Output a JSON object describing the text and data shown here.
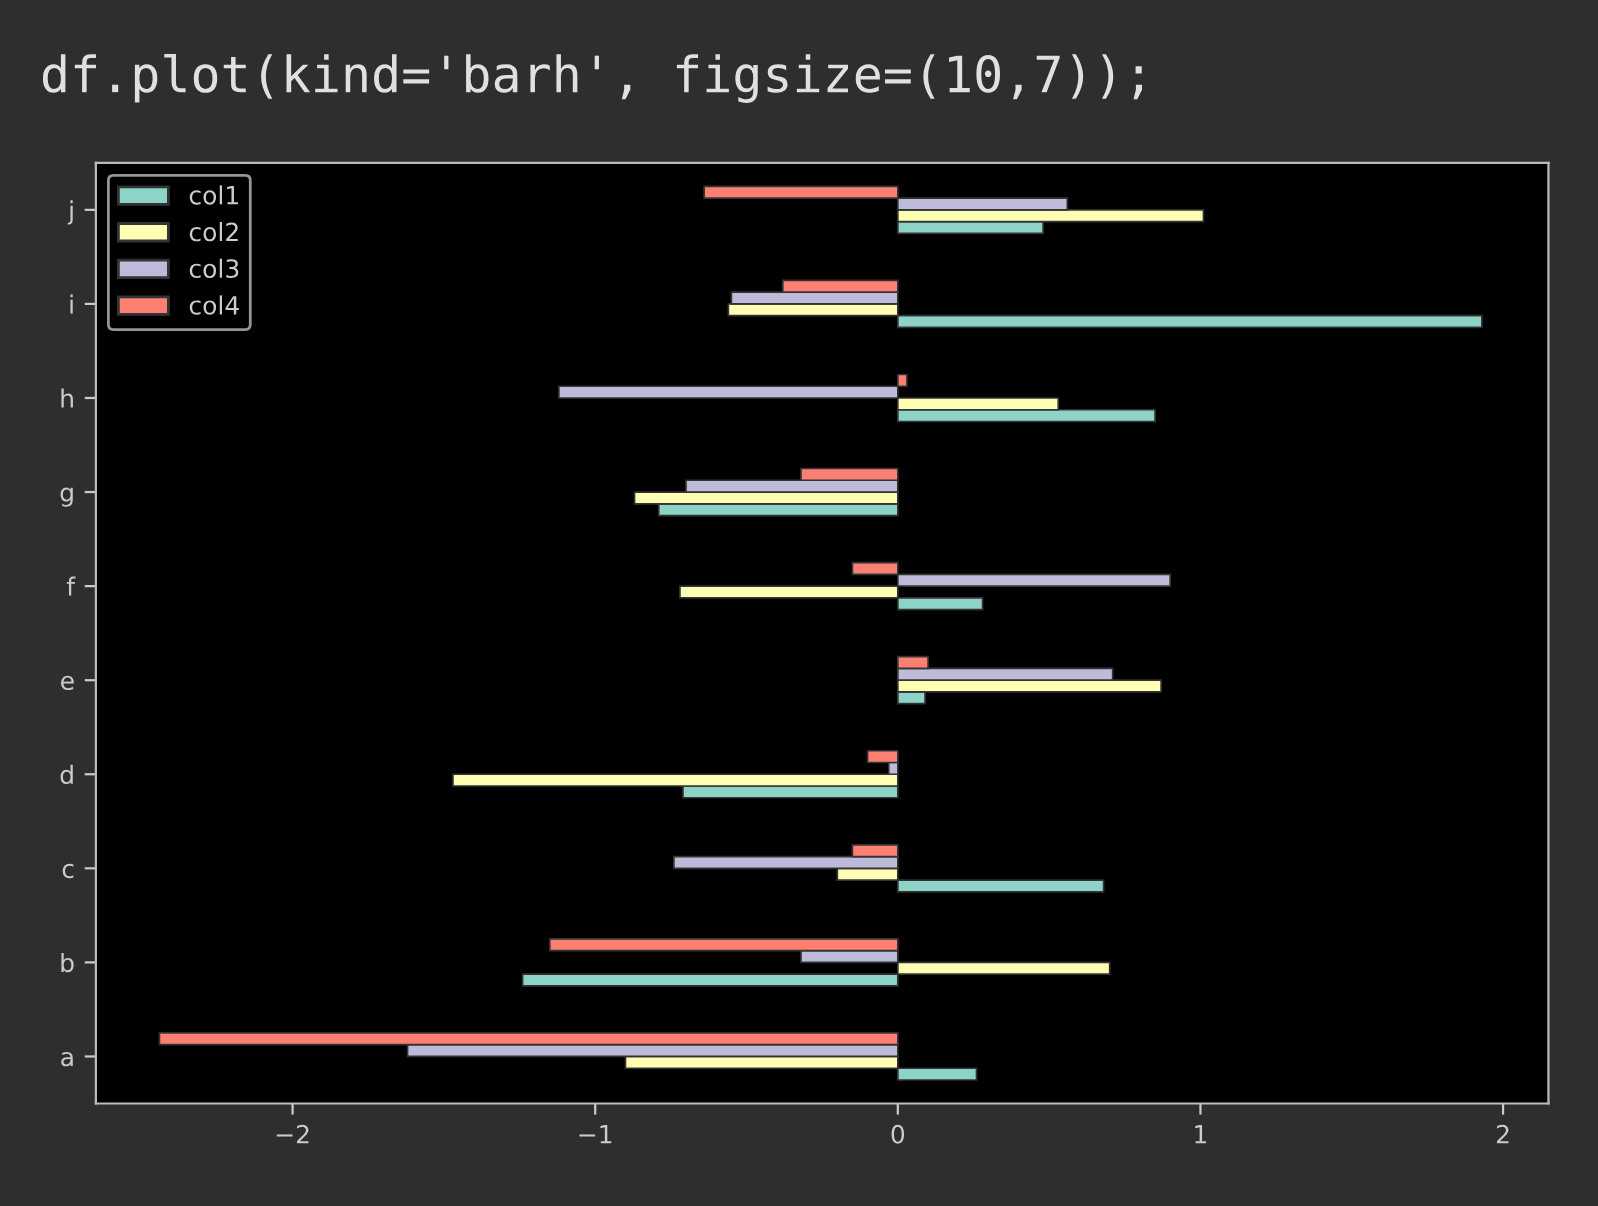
{
  "chart_data": {
    "type": "bar",
    "orientation": "horizontal",
    "annotations": [
      "df.plot(kind='barh', figsize=(10,7));"
    ],
    "categories": [
      "j",
      "i",
      "h",
      "g",
      "f",
      "e",
      "d",
      "c",
      "b",
      "a"
    ],
    "series": [
      {
        "name": "col1",
        "color": "#8dd3c7",
        "values": [
          0.48,
          1.93,
          0.85,
          -0.79,
          0.28,
          0.09,
          -0.71,
          0.68,
          -1.24,
          0.26
        ]
      },
      {
        "name": "col2",
        "color": "#ffffb3",
        "values": [
          1.01,
          -0.56,
          0.53,
          -0.87,
          -0.72,
          0.87,
          -1.47,
          -0.2,
          0.7,
          -0.9
        ]
      },
      {
        "name": "col3",
        "color": "#bebada",
        "values": [
          0.56,
          -0.55,
          -1.12,
          -0.7,
          0.9,
          0.71,
          -0.03,
          -0.74,
          -0.32,
          -1.62
        ]
      },
      {
        "name": "col4",
        "color": "#fb8072",
        "values": [
          -0.64,
          -0.38,
          0.03,
          -0.32,
          -0.15,
          0.1,
          -0.1,
          -0.15,
          -1.15,
          -2.44
        ]
      }
    ],
    "xlim": [
      -2.65,
      2.15
    ],
    "xticks": [
      {
        "value": -2,
        "label": "−2"
      },
      {
        "value": -1,
        "label": "−1"
      },
      0,
      1,
      2
    ],
    "grid": false,
    "legend": "top left"
  }
}
